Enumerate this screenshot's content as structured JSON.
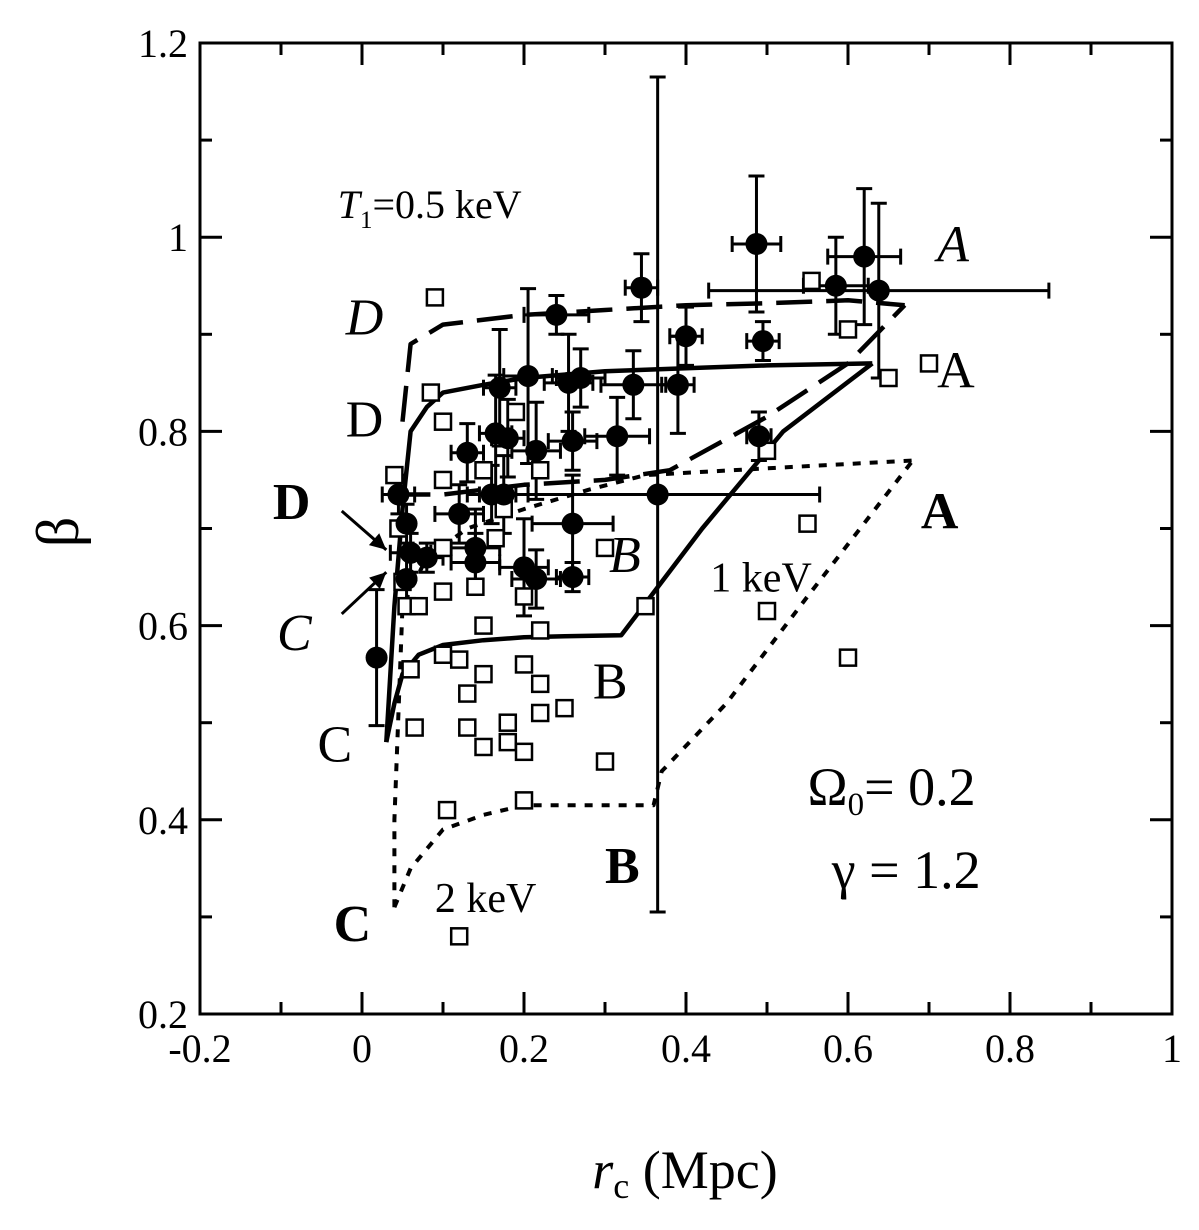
{
  "chart_data": {
    "type": "scatter",
    "title": "",
    "xlabel": "r",
    "xlabel_sub": "c",
    "xlabel_unit": " (Mpc)",
    "ylabel": "β",
    "xlim": [
      -0.2,
      1.0
    ],
    "ylim": [
      0.2,
      1.2
    ],
    "xticks": [
      -0.2,
      0,
      0.2,
      0.4,
      0.6,
      0.8,
      1.0
    ],
    "xtick_labels": [
      "-0.2",
      "0",
      "0.2",
      "0.4",
      "0.6",
      "0.8",
      "1"
    ],
    "yticks": [
      0.2,
      0.4,
      0.6,
      0.8,
      1.0,
      1.2
    ],
    "ytick_labels": [
      "0.2",
      "0.4",
      "0.6",
      "0.8",
      "1",
      "1.2"
    ],
    "grid": false,
    "series": [
      {
        "marker": "filled-circle",
        "points": [
          {
            "x": 0.018,
            "y": 0.567,
            "yerr": 0.07
          },
          {
            "x": 0.045,
            "y": 0.735,
            "xerr": 0.02,
            "yerr": 0.02
          },
          {
            "x": 0.055,
            "y": 0.705,
            "yerr": 0.02
          },
          {
            "x": 0.06,
            "y": 0.675,
            "xerr": 0.025,
            "yerr": 0.02
          },
          {
            "x": 0.055,
            "y": 0.648,
            "yerr": 0.03
          },
          {
            "x": 0.08,
            "y": 0.67,
            "xerr": 0.02,
            "yerr": 0.015
          },
          {
            "x": 0.12,
            "y": 0.715,
            "xerr": 0.03,
            "yerr": 0.03
          },
          {
            "x": 0.13,
            "y": 0.778,
            "xerr": 0.02,
            "yerr": 0.03
          },
          {
            "x": 0.14,
            "y": 0.68,
            "xerr": 0.03,
            "yerr": 0.04
          },
          {
            "x": 0.14,
            "y": 0.665,
            "xerr": 0.03,
            "yerr": 0.03
          },
          {
            "x": 0.16,
            "y": 0.735,
            "xerr": 0.03,
            "yerr": 0.03
          },
          {
            "x": 0.165,
            "y": 0.798,
            "xerr": 0.02,
            "yerr": 0.06
          },
          {
            "x": 0.17,
            "y": 0.845,
            "xerr": 0.02,
            "yerr": 0.06
          },
          {
            "x": 0.18,
            "y": 0.793,
            "xerr": 0.02,
            "yerr": 0.04
          },
          {
            "x": 0.175,
            "y": 0.735,
            "xerr": 0.03,
            "yerr": 0.04
          },
          {
            "x": 0.2,
            "y": 0.66,
            "xerr": 0.03,
            "yerr": 0.05
          },
          {
            "x": 0.205,
            "y": 0.857,
            "xerr": 0.03,
            "yerr": 0.09
          },
          {
            "x": 0.215,
            "y": 0.78,
            "xerr": 0.03,
            "yerr": 0.05
          },
          {
            "x": 0.215,
            "y": 0.648,
            "xerr": 0.03,
            "yerr": 0.03
          },
          {
            "x": 0.24,
            "y": 0.92,
            "xerr": 0.04,
            "yerr": 0.02
          },
          {
            "x": 0.255,
            "y": 0.85,
            "xerr": 0.03,
            "yerr": 0.05
          },
          {
            "x": 0.26,
            "y": 0.79,
            "xerr": 0.03,
            "yerr": 0.03
          },
          {
            "x": 0.26,
            "y": 0.705,
            "xerr": 0.05,
            "yerr": 0.05
          },
          {
            "x": 0.26,
            "y": 0.65,
            "xerr": 0.02,
            "yerr": 0.015
          },
          {
            "x": 0.27,
            "y": 0.855,
            "xerr": 0.03,
            "yerr": 0.03
          },
          {
            "x": 0.315,
            "y": 0.795,
            "xerr": 0.04,
            "yerr": 0.04
          },
          {
            "x": 0.335,
            "y": 0.848,
            "xerr": 0.04,
            "yerr": 0.035
          },
          {
            "x": 0.345,
            "y": 0.948,
            "xerr": 0.02,
            "yerr": 0.035
          },
          {
            "x": 0.365,
            "y": 0.735,
            "xerr": 0.2,
            "yerr": 0.43
          },
          {
            "x": 0.39,
            "y": 0.848,
            "xerr": 0.02,
            "yerr": 0.05
          },
          {
            "x": 0.4,
            "y": 0.898,
            "xerr": 0.02,
            "yerr": 0.03
          },
          {
            "x": 0.49,
            "y": 0.795,
            "xerr": 0.015,
            "yerr": 0.025
          },
          {
            "x": 0.487,
            "y": 0.993,
            "xerr": 0.03,
            "yerr": 0.07
          },
          {
            "x": 0.495,
            "y": 0.893,
            "xerr": 0.02,
            "yerr": 0.02
          },
          {
            "x": 0.585,
            "y": 0.95,
            "xerr": 0.04,
            "yerr": 0.05
          },
          {
            "x": 0.62,
            "y": 0.98,
            "xerr": 0.045,
            "yerr": 0.07
          },
          {
            "x": 0.638,
            "y": 0.945,
            "xerr": 0.21,
            "yerr": 0.09
          }
        ]
      },
      {
        "marker": "open-square",
        "points": [
          {
            "x": 0.04,
            "y": 0.755
          },
          {
            "x": 0.045,
            "y": 0.7
          },
          {
            "x": 0.05,
            "y": 0.645
          },
          {
            "x": 0.055,
            "y": 0.62
          },
          {
            "x": 0.06,
            "y": 0.555
          },
          {
            "x": 0.065,
            "y": 0.495
          },
          {
            "x": 0.07,
            "y": 0.62
          },
          {
            "x": 0.085,
            "y": 0.84
          },
          {
            "x": 0.09,
            "y": 0.938
          },
          {
            "x": 0.1,
            "y": 0.81
          },
          {
            "x": 0.1,
            "y": 0.75
          },
          {
            "x": 0.1,
            "y": 0.68
          },
          {
            "x": 0.1,
            "y": 0.635
          },
          {
            "x": 0.1,
            "y": 0.57
          },
          {
            "x": 0.105,
            "y": 0.41
          },
          {
            "x": 0.12,
            "y": 0.565
          },
          {
            "x": 0.12,
            "y": 0.28
          },
          {
            "x": 0.13,
            "y": 0.53
          },
          {
            "x": 0.13,
            "y": 0.495
          },
          {
            "x": 0.14,
            "y": 0.64
          },
          {
            "x": 0.15,
            "y": 0.76
          },
          {
            "x": 0.15,
            "y": 0.6
          },
          {
            "x": 0.15,
            "y": 0.55
          },
          {
            "x": 0.15,
            "y": 0.475
          },
          {
            "x": 0.165,
            "y": 0.69
          },
          {
            "x": 0.175,
            "y": 0.72
          },
          {
            "x": 0.18,
            "y": 0.5
          },
          {
            "x": 0.18,
            "y": 0.48
          },
          {
            "x": 0.19,
            "y": 0.82
          },
          {
            "x": 0.2,
            "y": 0.63
          },
          {
            "x": 0.2,
            "y": 0.56
          },
          {
            "x": 0.2,
            "y": 0.47
          },
          {
            "x": 0.2,
            "y": 0.42
          },
          {
            "x": 0.22,
            "y": 0.76
          },
          {
            "x": 0.22,
            "y": 0.595
          },
          {
            "x": 0.22,
            "y": 0.54
          },
          {
            "x": 0.22,
            "y": 0.51
          },
          {
            "x": 0.25,
            "y": 0.515
          },
          {
            "x": 0.3,
            "y": 0.68
          },
          {
            "x": 0.3,
            "y": 0.46
          },
          {
            "x": 0.35,
            "y": 0.62
          },
          {
            "x": 0.5,
            "y": 0.78
          },
          {
            "x": 0.5,
            "y": 0.615
          },
          {
            "x": 0.55,
            "y": 0.705
          },
          {
            "x": 0.555,
            "y": 0.955
          },
          {
            "x": 0.6,
            "y": 0.905
          },
          {
            "x": 0.6,
            "y": 0.567
          },
          {
            "x": 0.65,
            "y": 0.855
          },
          {
            "x": 0.7,
            "y": 0.87
          }
        ]
      }
    ],
    "curves": [
      {
        "style": "solid",
        "points": [
          [
            0.03,
            0.48
          ],
          [
            0.04,
            0.52
          ],
          [
            0.05,
            0.55
          ],
          [
            0.07,
            0.57
          ],
          [
            0.1,
            0.58
          ],
          [
            0.15,
            0.585
          ],
          [
            0.2,
            0.588
          ],
          [
            0.25,
            0.589
          ],
          [
            0.32,
            0.59
          ],
          [
            0.42,
            0.7
          ],
          [
            0.52,
            0.8
          ],
          [
            0.63,
            0.87
          ]
        ]
      },
      {
        "style": "solid",
        "points": [
          [
            0.03,
            0.48
          ],
          [
            0.04,
            0.62
          ],
          [
            0.05,
            0.72
          ],
          [
            0.06,
            0.8
          ],
          [
            0.08,
            0.825
          ],
          [
            0.1,
            0.84
          ],
          [
            0.15,
            0.848
          ],
          [
            0.2,
            0.855
          ],
          [
            0.3,
            0.862
          ],
          [
            0.4,
            0.865
          ],
          [
            0.5,
            0.868
          ],
          [
            0.63,
            0.87
          ]
        ]
      },
      {
        "style": "dashed",
        "points": [
          [
            0.05,
            0.81
          ],
          [
            0.06,
            0.89
          ],
          [
            0.1,
            0.91
          ],
          [
            0.2,
            0.92
          ],
          [
            0.3,
            0.925
          ],
          [
            0.4,
            0.93
          ],
          [
            0.5,
            0.932
          ],
          [
            0.6,
            0.935
          ],
          [
            0.67,
            0.93
          ]
        ]
      },
      {
        "style": "dashed",
        "points": [
          [
            0.04,
            0.735
          ],
          [
            0.1,
            0.735
          ],
          [
            0.2,
            0.745
          ],
          [
            0.3,
            0.75
          ],
          [
            0.38,
            0.76
          ],
          [
            0.5,
            0.815
          ],
          [
            0.6,
            0.87
          ],
          [
            0.67,
            0.93
          ]
        ]
      },
      {
        "style": "dotted",
        "points": [
          [
            0.04,
            0.31
          ],
          [
            0.04,
            0.4
          ],
          [
            0.05,
            0.62
          ],
          [
            0.08,
            0.67
          ],
          [
            0.13,
            0.7
          ],
          [
            0.2,
            0.72
          ],
          [
            0.28,
            0.74
          ],
          [
            0.35,
            0.755
          ],
          [
            0.5,
            0.762
          ],
          [
            0.68,
            0.77
          ]
        ]
      },
      {
        "style": "dotted",
        "points": [
          [
            0.04,
            0.31
          ],
          [
            0.06,
            0.35
          ],
          [
            0.1,
            0.39
          ],
          [
            0.15,
            0.405
          ],
          [
            0.2,
            0.415
          ],
          [
            0.3,
            0.415
          ],
          [
            0.36,
            0.415
          ],
          [
            0.37,
            0.45
          ],
          [
            0.45,
            0.52
          ],
          [
            0.55,
            0.63
          ],
          [
            0.68,
            0.77
          ]
        ]
      }
    ],
    "annotations": [
      {
        "text": "T",
        "sub": "1",
        "after": "=0.5 keV",
        "x": -0.03,
        "y": 1.02,
        "size": 40,
        "style": "italic-first"
      },
      {
        "text": "D",
        "x": -0.02,
        "y": 0.9,
        "size": 52,
        "style": "italic"
      },
      {
        "text": "A",
        "x": 0.71,
        "y": 0.975,
        "size": 52,
        "style": "italic"
      },
      {
        "text": "D",
        "x": -0.02,
        "y": 0.795,
        "size": 52,
        "style": "normal"
      },
      {
        "text": "A",
        "x": 0.71,
        "y": 0.845,
        "size": 52,
        "style": "normal"
      },
      {
        "text": "D",
        "x": -0.11,
        "y": 0.71,
        "size": 52,
        "style": "bold"
      },
      {
        "text": "A",
        "x": 0.69,
        "y": 0.7,
        "size": 52,
        "style": "bold"
      },
      {
        "text": "B",
        "x": 0.305,
        "y": 0.655,
        "size": 52,
        "style": "italic"
      },
      {
        "text": "1 keV",
        "x": 0.43,
        "y": 0.635,
        "size": 42,
        "style": "normal"
      },
      {
        "text": "C",
        "x": -0.105,
        "y": 0.575,
        "size": 52,
        "style": "italic"
      },
      {
        "text": "B",
        "x": 0.285,
        "y": 0.525,
        "size": 52,
        "style": "normal"
      },
      {
        "text": "C",
        "x": -0.055,
        "y": 0.46,
        "size": 52,
        "style": "normal"
      },
      {
        "text": "Ω",
        "sub": "0",
        "after": "= 0.2",
        "x": 0.55,
        "y": 0.415,
        "size": 54,
        "style": "sans"
      },
      {
        "text": "γ = 1.2",
        "x": 0.58,
        "y": 0.33,
        "size": 54,
        "style": "sans"
      },
      {
        "text": "B",
        "x": 0.3,
        "y": 0.335,
        "size": 52,
        "style": "bold"
      },
      {
        "text": "2 keV",
        "x": 0.09,
        "y": 0.305,
        "size": 42,
        "style": "normal"
      },
      {
        "text": "C",
        "x": -0.035,
        "y": 0.275,
        "size": 52,
        "style": "bold"
      }
    ],
    "arrows": [
      {
        "from": [
          -0.025,
          0.718
        ],
        "to": [
          0.03,
          0.678
        ]
      },
      {
        "from": [
          -0.025,
          0.612
        ],
        "to": [
          0.03,
          0.655
        ]
      }
    ]
  }
}
